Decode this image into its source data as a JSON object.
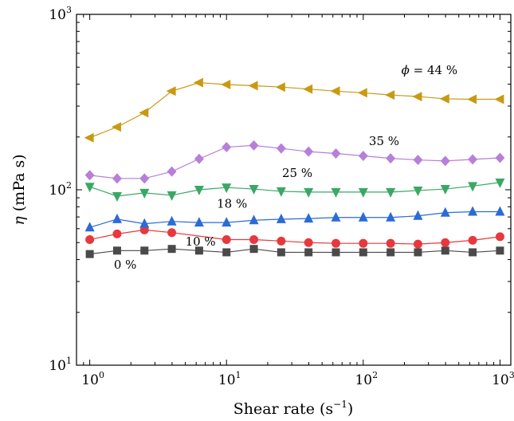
{
  "chart_data": {
    "type": "line",
    "xscale": "log",
    "yscale": "log",
    "xlim": [
      0.8,
      1200
    ],
    "ylim": [
      10,
      1000
    ],
    "grid": false,
    "legend": "none",
    "x_ticks": [
      {
        "value": 1,
        "base": "10",
        "exp": "0"
      },
      {
        "value": 10,
        "base": "10",
        "exp": "1"
      },
      {
        "value": 100,
        "base": "10",
        "exp": "2"
      },
      {
        "value": 1000,
        "base": "10",
        "exp": "3"
      }
    ],
    "y_ticks": [
      {
        "value": 10,
        "base": "10",
        "exp": "1"
      },
      {
        "value": 100,
        "base": "10",
        "exp": "2"
      },
      {
        "value": 1000,
        "base": "10",
        "exp": "3"
      }
    ],
    "xlabel": {
      "pre": "Shear rate (s",
      "sup": "−1",
      "post": ")"
    },
    "ylabel": {
      "symbol": "η",
      "text": " (mPa s)"
    },
    "x": [
      1,
      1.585,
      2.512,
      3.981,
      6.31,
      10,
      15.85,
      25.12,
      39.81,
      63.1,
      100,
      158.5,
      251.2,
      398.1,
      631,
      1000
    ],
    "series": [
      {
        "label": "0 %",
        "color": "#4a4a4a",
        "marker": "square",
        "values": [
          43,
          45,
          45,
          46,
          45,
          44,
          46,
          44,
          44,
          44,
          44,
          44,
          44,
          45,
          44,
          45
        ]
      },
      {
        "label": "10 %",
        "color": "#e8383d",
        "marker": "circle",
        "values": [
          52,
          56,
          59,
          57,
          null,
          52,
          52,
          51,
          50,
          49.5,
          49.5,
          49.5,
          49,
          50,
          51.5,
          54
        ]
      },
      {
        "label": "18 %",
        "color": "#2b6bd6",
        "marker": "triangle-up",
        "values": [
          61,
          68,
          64,
          66,
          65,
          65,
          67,
          68,
          68.5,
          69.5,
          69.5,
          69.5,
          71,
          74,
          75,
          75
        ]
      },
      {
        "label": "25 %",
        "color": "#3aa864",
        "marker": "triangle-down",
        "values": [
          104,
          92,
          96,
          93,
          100,
          103,
          101,
          98,
          97,
          97,
          97,
          97,
          99,
          101,
          105,
          110
        ]
      },
      {
        "label": "35 %",
        "color": "#b77fd9",
        "marker": "diamond",
        "values": [
          121,
          116,
          116,
          127,
          150,
          175,
          179,
          172,
          165,
          161,
          156,
          151,
          148,
          146,
          149,
          152
        ]
      },
      {
        "label": "44 %",
        "label_prefix": "ϕ = ",
        "color": "#c89a12",
        "marker": "triangle-left",
        "values": [
          198,
          228,
          275,
          365,
          408,
          398,
          392,
          385,
          375,
          365,
          357,
          347,
          340,
          330,
          328,
          328
        ]
      }
    ]
  }
}
